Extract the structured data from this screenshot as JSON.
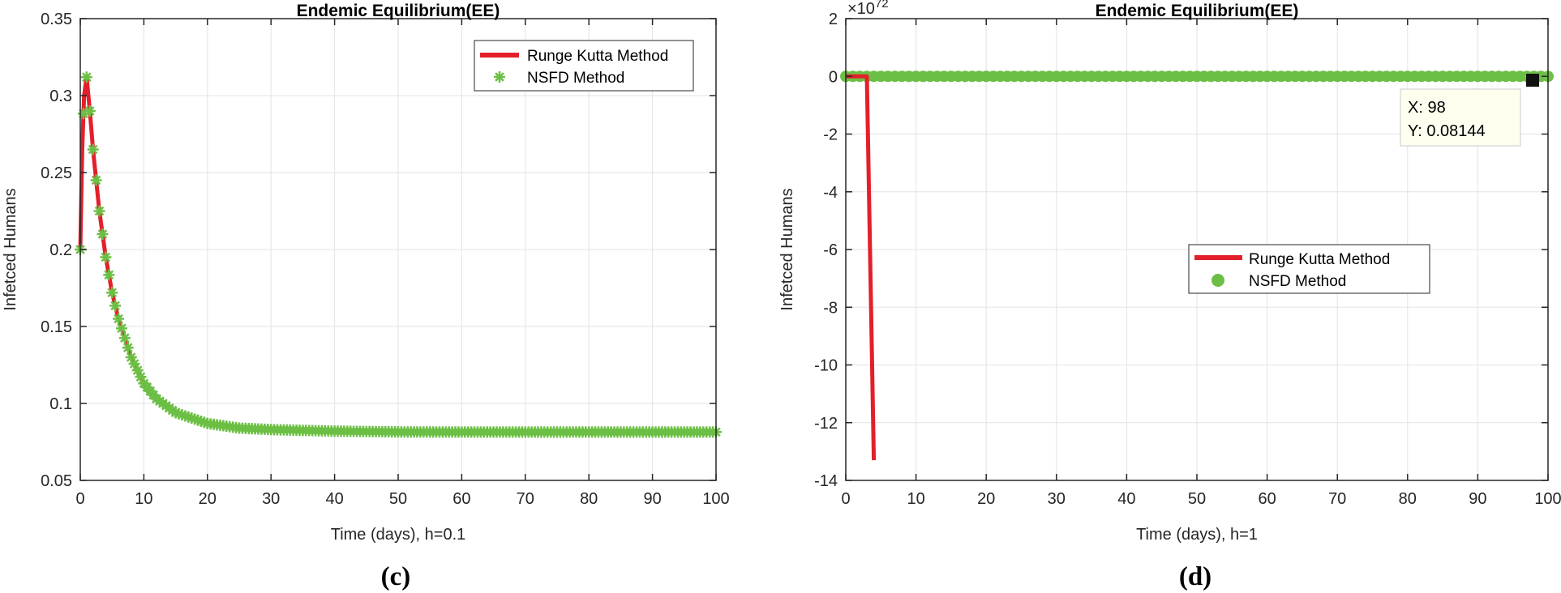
{
  "chart_data": [
    {
      "panel_label": "(c)",
      "type": "line",
      "title": "Endemic Equilibrium(EE)",
      "xlabel": "Time (days), h=0.1",
      "ylabel": "Infetced Humans",
      "xlim": [
        0,
        100
      ],
      "ylim": [
        0.05,
        0.35
      ],
      "xticks": [
        0,
        10,
        20,
        30,
        40,
        50,
        60,
        70,
        80,
        90,
        100
      ],
      "yticks": [
        "0.05",
        "0.1",
        "0.15",
        "0.2",
        "0.25",
        "0.3",
        "0.35"
      ],
      "grid": true,
      "legend_position": "top-right",
      "series": [
        {
          "name": "Runge Kutta Method",
          "style": "line",
          "color": "#e3202a",
          "x": [
            0,
            0.3,
            0.6,
            1,
            1.5,
            2,
            3,
            4,
            5,
            6,
            8,
            10,
            12,
            15,
            20,
            25,
            30,
            40,
            50,
            60,
            70,
            80,
            90,
            100
          ],
          "y": [
            0.2,
            0.265,
            0.3,
            0.312,
            0.29,
            0.265,
            0.225,
            0.195,
            0.172,
            0.155,
            0.13,
            0.113,
            0.103,
            0.094,
            0.087,
            0.084,
            0.083,
            0.082,
            0.0815,
            0.0814,
            0.0814,
            0.0814,
            0.0814,
            0.0814
          ]
        },
        {
          "name": "NSFD Method",
          "style": "marker",
          "marker": "asterisk",
          "color": "#6cbf45",
          "x": [
            0,
            0.3,
            0.6,
            1,
            1.5,
            2,
            3,
            4,
            5,
            6,
            8,
            10,
            12,
            15,
            20,
            25,
            30,
            40,
            50,
            60,
            70,
            80,
            90,
            100
          ],
          "y": [
            0.2,
            0.265,
            0.3,
            0.312,
            0.29,
            0.265,
            0.225,
            0.195,
            0.172,
            0.155,
            0.13,
            0.113,
            0.103,
            0.094,
            0.087,
            0.084,
            0.083,
            0.082,
            0.0815,
            0.0814,
            0.0814,
            0.0814,
            0.0814,
            0.0814
          ]
        }
      ]
    },
    {
      "panel_label": "(d)",
      "type": "line",
      "title": "Endemic Equilibrium(EE)",
      "xlabel": "Time (days), h=1",
      "ylabel": "Infetced Humans",
      "y_multiplier": "×10",
      "y_exponent": "72",
      "xlim": [
        0,
        100
      ],
      "ylim": [
        -14,
        2
      ],
      "xticks": [
        0,
        10,
        20,
        30,
        40,
        50,
        60,
        70,
        80,
        90,
        100
      ],
      "yticks": [
        "2",
        "0",
        "-2",
        "-4",
        "-6",
        "-8",
        "-10",
        "-12",
        "-14"
      ],
      "grid": true,
      "legend_position": "center-right",
      "series": [
        {
          "name": "Runge Kutta Method",
          "style": "line",
          "color": "#e3202a",
          "x": [
            0,
            1,
            2,
            3,
            4
          ],
          "y": [
            0,
            0,
            0,
            0,
            -13.3
          ]
        },
        {
          "name": "NSFD Method",
          "style": "marker",
          "marker": "filled-circle",
          "color": "#6cbf45",
          "x": [
            0,
            10,
            20,
            30,
            40,
            50,
            60,
            70,
            80,
            90,
            100
          ],
          "y": [
            0,
            0,
            0,
            0,
            0,
            0,
            0,
            0,
            0,
            0,
            0
          ]
        }
      ],
      "datatip": {
        "x": 98,
        "y": 0.08144,
        "x_text": "X: 98",
        "y_text": "Y: 0.08144"
      }
    }
  ]
}
